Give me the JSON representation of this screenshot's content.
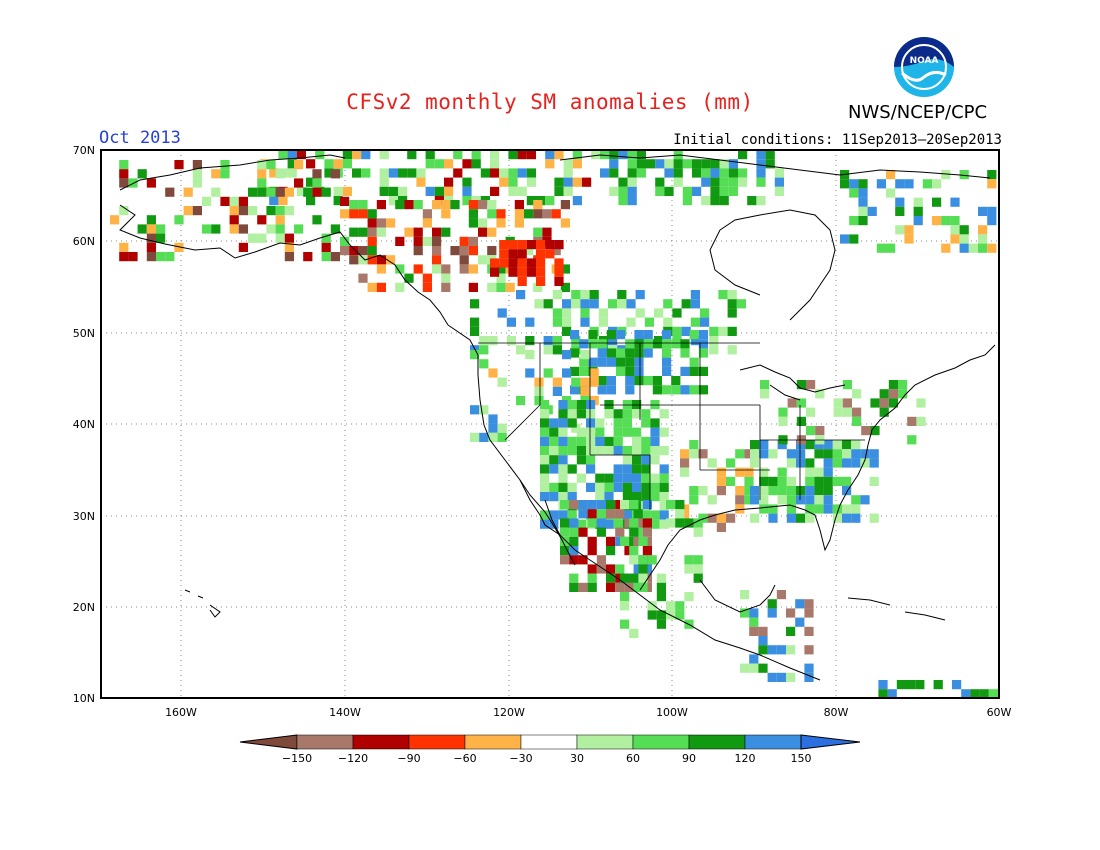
{
  "map": {
    "title": "CFSv2 monthly SM anomalies (mm)",
    "agency": "NWS/NCEP/CPC",
    "logo_text": "NOAA",
    "valid_month": "Oct 2013",
    "initial_conditions": "Initial conditions: 11Sep2013–20Sep2013",
    "lat_labels": [
      "70N",
      "60N",
      "50N",
      "40N",
      "30N",
      "20N",
      "10N"
    ],
    "lon_labels": [
      "160W",
      "140W",
      "120W",
      "100W",
      "80W",
      "60W"
    ],
    "lat_range": [
      10,
      70
    ],
    "lon_range": [
      -171,
      -60
    ],
    "grid": true
  },
  "legend": {
    "ticks": [
      "−150",
      "−120",
      "−90",
      "−60",
      "−30",
      "30",
      "60",
      "90",
      "120",
      "150"
    ],
    "bin_colors": [
      "#7f4a3c",
      "#a8786b",
      "#b00000",
      "#ff3300",
      "#ffb347",
      "#ffffff",
      "#b0f0a0",
      "#55dd55",
      "#119911",
      "#3b8fe0",
      "#2b6fe0"
    ],
    "units": "mm"
  }
}
